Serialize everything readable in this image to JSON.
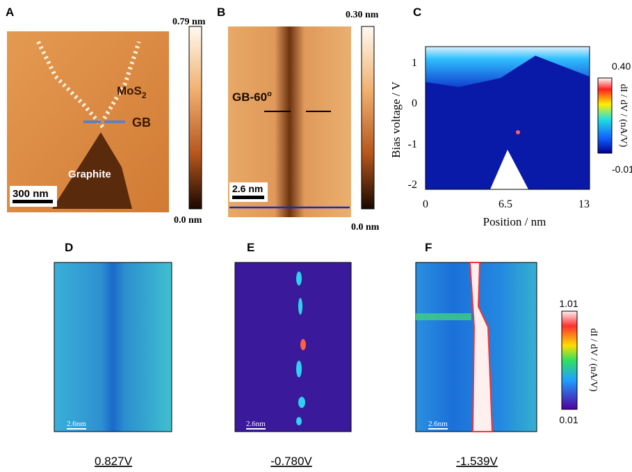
{
  "panel_a": {
    "letter": "A",
    "colorbar_max": "0.79 nm",
    "colorbar_min": "0.0 nm",
    "material": {
      "label": "MoS",
      "subscript": "2"
    },
    "boundary": "GB",
    "substrate": "Graphite",
    "scale_bar": "300 nm"
  },
  "panel_b": {
    "letter": "B",
    "colorbar_max": "0.30 nm",
    "colorbar_min": "0.0 nm",
    "boundary": {
      "label": "GB-60",
      "superscript": "o"
    },
    "scale_bar": "2.6 nm"
  },
  "panel_c": {
    "letter": "C",
    "y_label": "Bias voltage / V",
    "x_label": "Position / nm",
    "y_ticks": [
      "1",
      "0",
      "-1",
      "-2"
    ],
    "x_ticks": [
      "0",
      "6.5",
      "13"
    ],
    "colorbar_max": "0.40",
    "colorbar_min": "-0.01",
    "colorbar_label": "dI / dV / (nA/V)"
  },
  "panel_d": {
    "letter": "D",
    "scale_bar": "2.6nm",
    "bias": "0.827V"
  },
  "panel_e": {
    "letter": "E",
    "scale_bar": "2.6nm",
    "bias": "-0.780V"
  },
  "panel_f": {
    "letter": "F",
    "scale_bar": "2.6nm",
    "bias": "-1.539V"
  },
  "colorbar_def": {
    "max": "1.01",
    "min": "0.01",
    "label": "dI / dV / (nA/V)"
  }
}
